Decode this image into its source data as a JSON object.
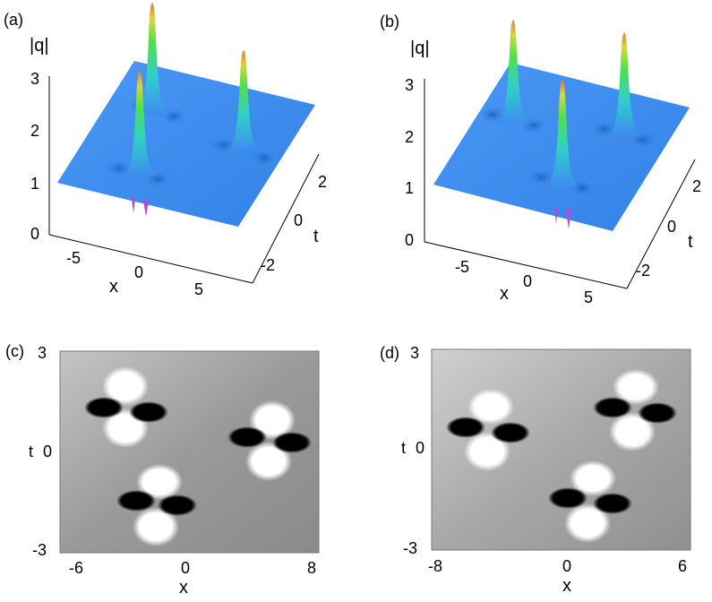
{
  "panels": {
    "a": {
      "label": "(a)",
      "zlabel": "|q|",
      "zticks": [
        "0",
        "1",
        "2",
        "3"
      ],
      "xlabel": "x",
      "xticks": [
        "-5",
        "0",
        "5"
      ],
      "tlabel": "t",
      "tticks": [
        "-2",
        "0",
        "2"
      ]
    },
    "b": {
      "label": "(b)",
      "zlabel": "|q|",
      "zticks": [
        "0",
        "1",
        "2",
        "3"
      ],
      "xlabel": "x",
      "xticks": [
        "-5",
        "0",
        "5"
      ],
      "tlabel": "t",
      "tticks": [
        "-2",
        "0",
        "2"
      ]
    },
    "c": {
      "label": "(c)",
      "ylabel": "t",
      "yticks": [
        "3",
        "0",
        "-3"
      ],
      "xlabel": "x",
      "xticks": [
        "-6",
        "0",
        "8"
      ]
    },
    "d": {
      "label": "(d)",
      "ylabel": "t",
      "yticks": [
        "3",
        "0",
        "-3"
      ],
      "xlabel": "x",
      "xticks": [
        "-8",
        "0",
        "6"
      ]
    }
  },
  "colors": {
    "surface_blue": "#3d8cf0",
    "peak_green": "#52e04a",
    "peak_yellow": "#d6d840",
    "peak_orange": "#e07a3a",
    "trough_violet": "#b24ad8"
  }
}
